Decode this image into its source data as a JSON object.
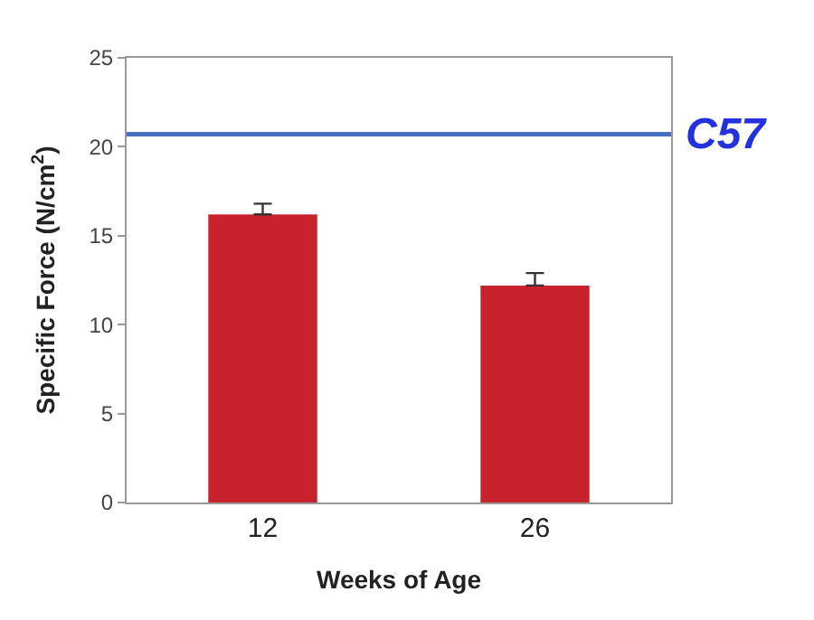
{
  "chart_data": {
    "type": "bar",
    "xlabel": "Weeks of Age",
    "ylabel": "Specific Force (N/cm$^{2}$)",
    "categories": [
      "12",
      "26"
    ],
    "values": [
      16.2,
      12.2
    ],
    "color": "#c8232c",
    "errors": [
      [
        16.2,
        16.8
      ],
      [
        12.2,
        12.9
      ]
    ],
    "ylim": [
      0,
      25
    ],
    "yticks": [
      0,
      5,
      10,
      15,
      20,
      25
    ],
    "ref_lines": [
      {
        "axis": "y",
        "value": 20.7,
        "label": "C57",
        "color": "#4a6fc0"
      }
    ]
  }
}
